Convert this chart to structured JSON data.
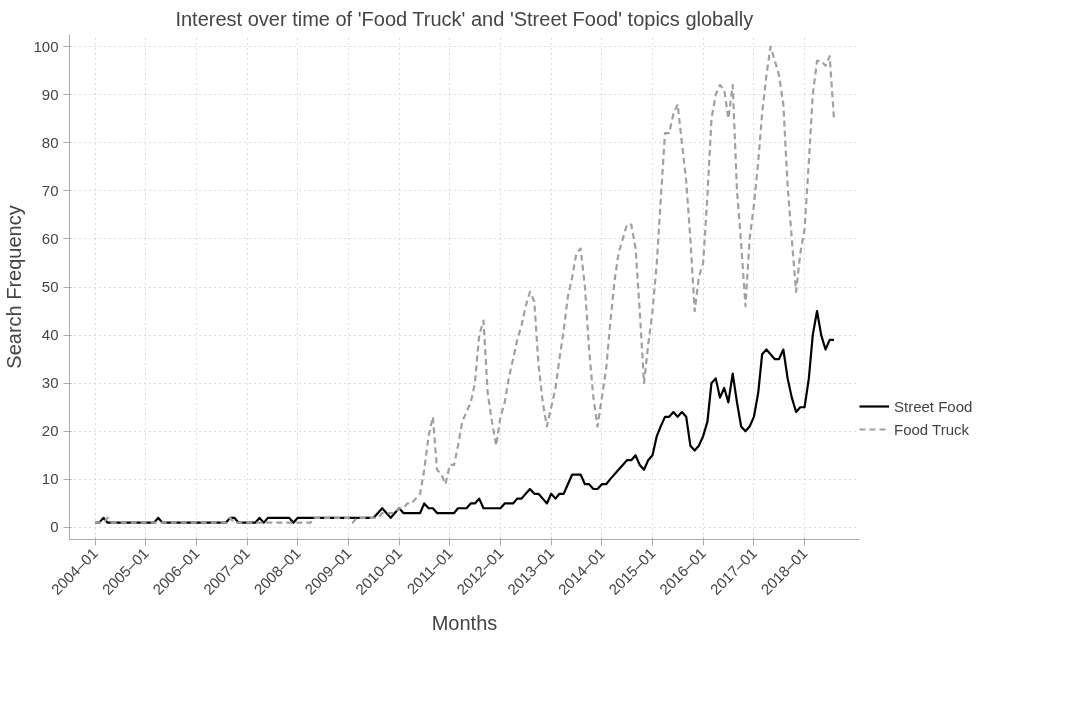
{
  "chart_data": {
    "type": "line",
    "title": "Interest over time of 'Food Truck' and 'Street Food' topics globally",
    "xlabel": "Months",
    "ylabel": "Search Frequency",
    "x": [
      "2004-01",
      "2004-02",
      "2004-03",
      "2004-04",
      "2004-05",
      "2004-06",
      "2004-07",
      "2004-08",
      "2004-09",
      "2004-10",
      "2004-11",
      "2004-12",
      "2005-01",
      "2005-02",
      "2005-03",
      "2005-04",
      "2005-05",
      "2005-06",
      "2005-07",
      "2005-08",
      "2005-09",
      "2005-10",
      "2005-11",
      "2005-12",
      "2006-01",
      "2006-02",
      "2006-03",
      "2006-04",
      "2006-05",
      "2006-06",
      "2006-07",
      "2006-08",
      "2006-09",
      "2006-10",
      "2006-11",
      "2006-12",
      "2007-01",
      "2007-02",
      "2007-03",
      "2007-04",
      "2007-05",
      "2007-06",
      "2007-07",
      "2007-08",
      "2007-09",
      "2007-10",
      "2007-11",
      "2007-12",
      "2008-01",
      "2008-02",
      "2008-03",
      "2008-04",
      "2008-05",
      "2008-06",
      "2008-07",
      "2008-08",
      "2008-09",
      "2008-10",
      "2008-11",
      "2008-12",
      "2009-01",
      "2009-02",
      "2009-03",
      "2009-04",
      "2009-05",
      "2009-06",
      "2009-07",
      "2009-08",
      "2009-09",
      "2009-10",
      "2009-11",
      "2009-12",
      "2010-01",
      "2010-02",
      "2010-03",
      "2010-04",
      "2010-05",
      "2010-06",
      "2010-07",
      "2010-08",
      "2010-09",
      "2010-10",
      "2010-11",
      "2010-12",
      "2011-01",
      "2011-02",
      "2011-03",
      "2011-04",
      "2011-05",
      "2011-06",
      "2011-07",
      "2011-08",
      "2011-09",
      "2011-10",
      "2011-11",
      "2011-12",
      "2012-01",
      "2012-02",
      "2012-03",
      "2012-04",
      "2012-05",
      "2012-06",
      "2012-07",
      "2012-08",
      "2012-09",
      "2012-10",
      "2012-11",
      "2012-12",
      "2013-01",
      "2013-02",
      "2013-03",
      "2013-04",
      "2013-05",
      "2013-06",
      "2013-07",
      "2013-08",
      "2013-09",
      "2013-10",
      "2013-11",
      "2013-12",
      "2014-01",
      "2014-02",
      "2014-03",
      "2014-04",
      "2014-05",
      "2014-06",
      "2014-07",
      "2014-08",
      "2014-09",
      "2014-10",
      "2014-11",
      "2014-12",
      "2015-01",
      "2015-02",
      "2015-03",
      "2015-04",
      "2015-05",
      "2015-06",
      "2015-07",
      "2015-08",
      "2015-09",
      "2015-10",
      "2015-11",
      "2015-12",
      "2016-01",
      "2016-02",
      "2016-03",
      "2016-04",
      "2016-05",
      "2016-06",
      "2016-07",
      "2016-08",
      "2016-09",
      "2016-10",
      "2016-11",
      "2016-12",
      "2017-01",
      "2017-02",
      "2017-03",
      "2017-04",
      "2017-05",
      "2017-06",
      "2017-07",
      "2017-08",
      "2017-09",
      "2017-10",
      "2017-11",
      "2017-12",
      "2018-01",
      "2018-02",
      "2018-03",
      "2018-04",
      "2018-05",
      "2018-06",
      "2018-07",
      "2018-08"
    ],
    "series": [
      {
        "name": "Street Food",
        "color": "#000000",
        "line_style": "solid",
        "values": [
          1,
          1,
          2,
          1,
          1,
          1,
          1,
          1,
          1,
          1,
          1,
          1,
          1,
          1,
          1,
          2,
          1,
          1,
          1,
          1,
          1,
          1,
          1,
          1,
          1,
          1,
          1,
          1,
          1,
          1,
          1,
          1,
          2,
          2,
          1,
          1,
          1,
          1,
          1,
          2,
          1,
          2,
          2,
          2,
          2,
          2,
          2,
          1,
          2,
          2,
          2,
          2,
          2,
          2,
          2,
          2,
          2,
          2,
          2,
          2,
          2,
          2,
          2,
          2,
          2,
          2,
          2,
          3,
          4,
          3,
          2,
          3,
          4,
          3,
          3,
          3,
          3,
          3,
          5,
          4,
          4,
          3,
          3,
          3,
          3,
          3,
          4,
          4,
          4,
          5,
          5,
          6,
          4,
          4,
          4,
          4,
          4,
          5,
          5,
          5,
          6,
          6,
          7,
          8,
          7,
          7,
          6,
          5,
          7,
          6,
          7,
          7,
          9,
          11,
          11,
          11,
          9,
          9,
          8,
          8,
          9,
          9,
          10,
          11,
          12,
          13,
          14,
          14,
          15,
          13,
          12,
          14,
          15,
          19,
          21,
          23,
          23,
          24,
          23,
          24,
          23,
          17,
          16,
          17,
          19,
          22,
          30,
          31,
          27,
          29,
          26,
          32,
          26,
          21,
          20,
          21,
          23,
          28,
          36,
          37,
          36,
          35,
          35,
          37,
          31,
          27,
          24,
          25,
          25,
          31,
          40,
          45,
          40,
          37,
          39,
          39
        ]
      },
      {
        "name": "Food Truck",
        "color": "#a0a0a0",
        "line_style": "dashed",
        "values": [
          1,
          1,
          1,
          2,
          1,
          1,
          1,
          1,
          1,
          1,
          1,
          1,
          1,
          1,
          1,
          1,
          1,
          1,
          1,
          1,
          1,
          1,
          1,
          1,
          1,
          1,
          1,
          1,
          1,
          1,
          1,
          1,
          2,
          1,
          1,
          1,
          1,
          1,
          1,
          1,
          1,
          1,
          1,
          1,
          1,
          1,
          1,
          1,
          1,
          1,
          1,
          1,
          2,
          2,
          2,
          2,
          2,
          2,
          2,
          2,
          2,
          1,
          2,
          2,
          2,
          2,
          2,
          2,
          3,
          3,
          3,
          3,
          4,
          4,
          5,
          5,
          6,
          7,
          12,
          19,
          23,
          12,
          11,
          9,
          13,
          13,
          17,
          22,
          24,
          26,
          30,
          40,
          43,
          28,
          22,
          17,
          23,
          26,
          31,
          35,
          39,
          42,
          46,
          49,
          47,
          34,
          26,
          21,
          25,
          29,
          35,
          41,
          48,
          52,
          57,
          58,
          50,
          37,
          27,
          21,
          27,
          33,
          42,
          51,
          57,
          60,
          63,
          63,
          58,
          45,
          30,
          38,
          45,
          55,
          68,
          82,
          82,
          86,
          88,
          80,
          72,
          60,
          45,
          52,
          55,
          69,
          85,
          90,
          92,
          91,
          85,
          92,
          70,
          59,
          46,
          60,
          67,
          76,
          86,
          94,
          100,
          97,
          94,
          88,
          71,
          60,
          49,
          57,
          62,
          76,
          90,
          97,
          97,
          96,
          98,
          85
        ]
      }
    ],
    "xlim": [
      "2003-07",
      "2019-02"
    ],
    "xticks": [
      {
        "value": "2004-01",
        "label": "2004–01"
      },
      {
        "value": "2005-01",
        "label": "2005–01"
      },
      {
        "value": "2006-01",
        "label": "2006–01"
      },
      {
        "value": "2007-01",
        "label": "2007–01"
      },
      {
        "value": "2008-01",
        "label": "2008–01"
      },
      {
        "value": "2009-01",
        "label": "2009–01"
      },
      {
        "value": "2010-01",
        "label": "2010–01"
      },
      {
        "value": "2011-01",
        "label": "2011–01"
      },
      {
        "value": "2012-01",
        "label": "2012–01"
      },
      {
        "value": "2013-01",
        "label": "2013–01"
      },
      {
        "value": "2014-01",
        "label": "2014–01"
      },
      {
        "value": "2015-01",
        "label": "2015–01"
      },
      {
        "value": "2016-01",
        "label": "2016–01"
      },
      {
        "value": "2017-01",
        "label": "2017–01"
      },
      {
        "value": "2018-01",
        "label": "2018–01"
      }
    ],
    "ylim": [
      -2.5,
      102.5
    ],
    "yticks": [
      0,
      10,
      20,
      30,
      40,
      50,
      60,
      70,
      80,
      90,
      100
    ],
    "grid": true,
    "legend": "right"
  }
}
